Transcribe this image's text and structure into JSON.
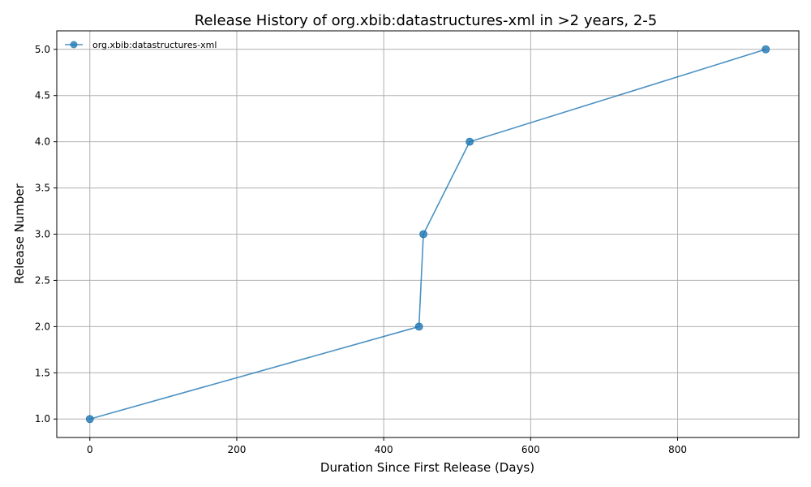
{
  "chart_data": {
    "type": "line",
    "title": "Release History of org.xbib:datastructures-xml in >2 years, 2-5",
    "xlabel": "Duration Since First Release (Days)",
    "ylabel": "Release Number",
    "xlim": [
      -45,
      965
    ],
    "ylim": [
      0.8,
      5.2
    ],
    "xticks": [
      0,
      200,
      400,
      600,
      800
    ],
    "xtick_labels": [
      "0",
      "200",
      "400",
      "600",
      "800"
    ],
    "yticks": [
      1.0,
      1.5,
      2.0,
      2.5,
      3.0,
      3.5,
      4.0,
      4.5,
      5.0
    ],
    "ytick_labels": [
      "1.0",
      "1.5",
      "2.0",
      "2.5",
      "3.0",
      "3.5",
      "4.0",
      "4.5",
      "5.0"
    ],
    "grid": true,
    "legend_position": "upper-left",
    "series": [
      {
        "name": "org.xbib:datastructures-xml",
        "color": "#1f77b4",
        "marker": "circle",
        "x": [
          0,
          448,
          454,
          517,
          920
        ],
        "y": [
          1,
          2,
          3,
          4,
          5
        ]
      }
    ]
  }
}
